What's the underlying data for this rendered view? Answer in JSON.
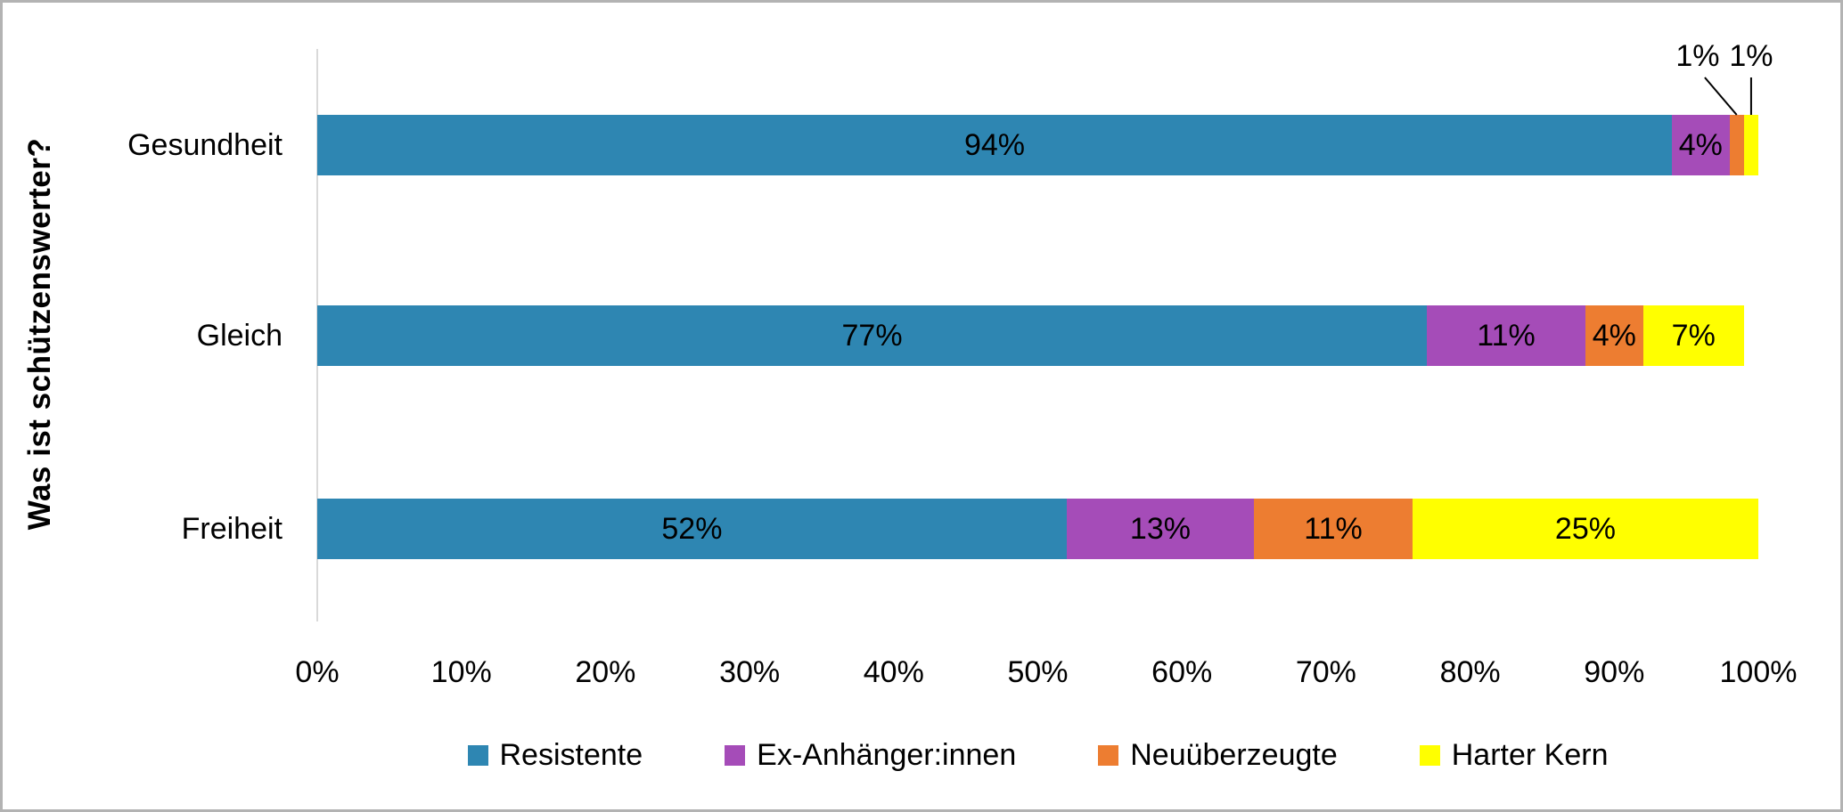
{
  "chart_data": {
    "type": "bar",
    "orientation": "horizontal",
    "stacked": true,
    "title": "",
    "ylabel": "Was ist schützenswerter?",
    "xlabel": "",
    "xlim": [
      0,
      100
    ],
    "x_ticks": [
      "0%",
      "10%",
      "20%",
      "30%",
      "40%",
      "50%",
      "60%",
      "70%",
      "80%",
      "90%",
      "100%"
    ],
    "grid": false,
    "legend_position": "bottom",
    "categories": [
      "Gesundheit",
      "Gleich",
      "Freiheit"
    ],
    "series": [
      {
        "name": "Resistente",
        "color": "#2E86B2",
        "values": [
          94,
          77,
          52
        ]
      },
      {
        "name": "Ex-Anhänger:innen",
        "color": "#A54CB8",
        "values": [
          4,
          11,
          13
        ]
      },
      {
        "name": "Neuüberzeugte",
        "color": "#ED7D31",
        "values": [
          1,
          4,
          11
        ]
      },
      {
        "name": "Harter Kern",
        "color": "#FFFF00",
        "values": [
          1,
          7,
          25
        ]
      }
    ],
    "data_labels": [
      [
        "94%",
        "4%",
        "1%",
        "1%"
      ],
      [
        "77%",
        "11%",
        "4%",
        "7%"
      ],
      [
        "52%",
        "13%",
        "11%",
        "25%"
      ]
    ],
    "colors": {
      "axis_line": "#D9D9D9",
      "text": "#000000",
      "frame_border": "#B3B3B3",
      "callout_line": "#000000"
    }
  }
}
